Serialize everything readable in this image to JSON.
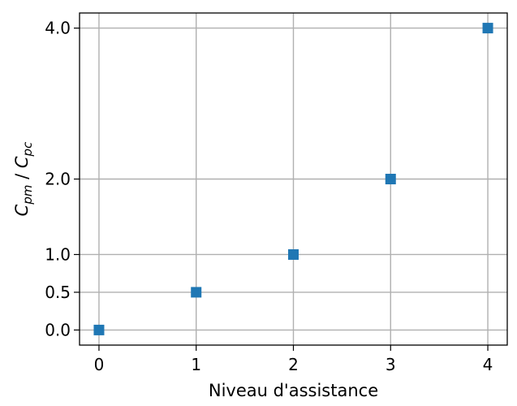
{
  "chart_data": {
    "type": "scatter",
    "xlabel": "Niveau d'assistance",
    "ylabel": {
      "base1": "C",
      "sub1": "pm",
      "sep": " / ",
      "base2": "C",
      "sub2": "pc"
    },
    "x": [
      0,
      1,
      2,
      3,
      4
    ],
    "y": [
      0.0,
      0.5,
      1.0,
      2.0,
      4.0
    ],
    "x_ticks": [
      0,
      1,
      2,
      3,
      4
    ],
    "x_tick_labels": [
      "0",
      "1",
      "2",
      "3",
      "4"
    ],
    "y_ticks": [
      0.0,
      0.5,
      1.0,
      2.0,
      4.0
    ],
    "y_tick_labels": [
      "0.0",
      "0.5",
      "1.0",
      "2.0",
      "4.0"
    ],
    "xlim": [
      -0.2,
      4.2
    ],
    "ylim": [
      -0.2,
      4.2
    ],
    "grid": true,
    "marker": "square",
    "colors": {
      "marker": "#1f77b4",
      "grid": "#b0b0b0",
      "axis": "#000000"
    }
  }
}
